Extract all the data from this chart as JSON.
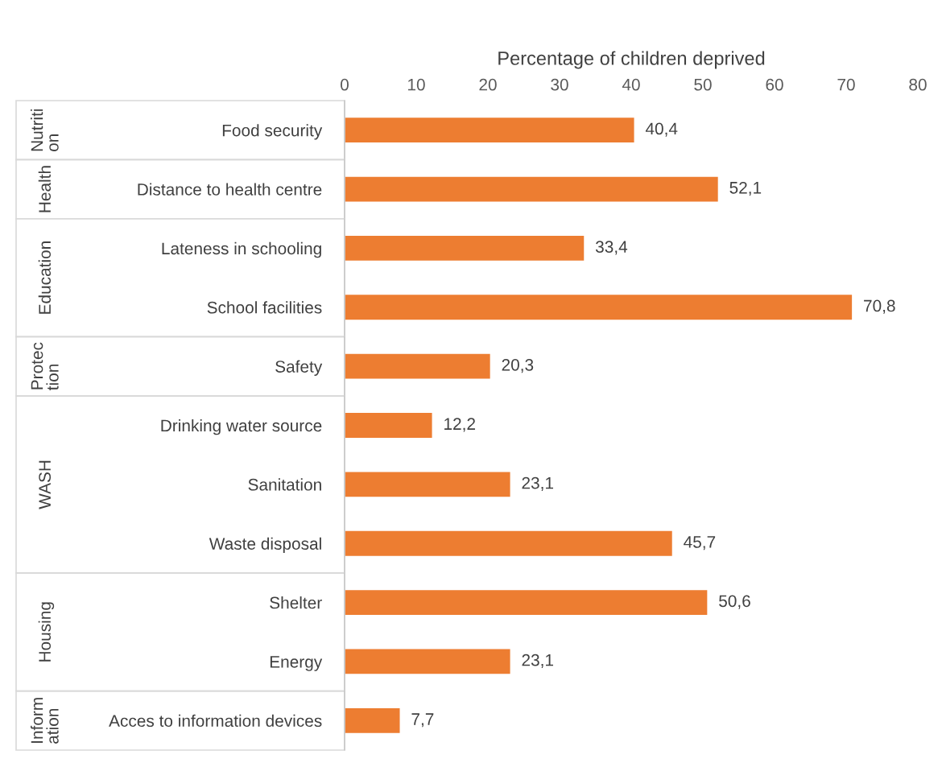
{
  "chart_data": [
    {
      "type": "bar",
      "orientation": "horizontal",
      "ylabel": "Nutriti\non",
      "xlabel": "Percentage of children deprived",
      "categories": [
        "Food security"
      ],
      "values": [
        40.4
      ],
      "value_labels": [
        "40,4"
      ],
      "color": "#ed7d31",
      "xlim": [
        0,
        80
      ],
      "xticks": [
        0,
        10,
        20,
        30,
        40,
        50,
        60,
        70,
        80
      ],
      "grid": false,
      "legend": false
    },
    {
      "type": "bar",
      "orientation": "horizontal",
      "ylabel": "Health",
      "categories": [
        "Distance to health centre"
      ],
      "values": [
        52.1
      ],
      "value_labels": [
        "52,1"
      ],
      "color": "#ed7d31",
      "xlim": [
        0,
        80
      ],
      "tick_labels": "y",
      "grid": false,
      "legend": false
    },
    {
      "type": "bar",
      "orientation": "horizontal",
      "ylabel": "Education",
      "categories": [
        "Lateness in schooling",
        "School facilities"
      ],
      "values": [
        33.4,
        70.8
      ],
      "value_labels": [
        "33,4",
        "70,8"
      ],
      "color": "#ed7d31",
      "xlim": [
        0,
        80
      ],
      "tick_labels": "y",
      "grid": false,
      "legend": false
    },
    {
      "type": "bar",
      "orientation": "horizontal",
      "ylabel": "Protec\ntion",
      "categories": [
        "Safety"
      ],
      "values": [
        20.3
      ],
      "value_labels": [
        "20,3"
      ],
      "color": "#ed7d31",
      "xlim": [
        0,
        80
      ],
      "tick_labels": "y",
      "grid": false,
      "legend": false
    },
    {
      "type": "bar",
      "orientation": "horizontal",
      "ylabel": "WASH",
      "categories": [
        "Drinking water source",
        "Sanitation",
        "Waste disposal"
      ],
      "values": [
        12.2,
        23.1,
        45.7
      ],
      "value_labels": [
        "12,2",
        "23,1",
        "45,7"
      ],
      "color": "#ed7d31",
      "xlim": [
        0,
        80
      ],
      "tick_labels": "y",
      "grid": false,
      "legend": false
    },
    {
      "type": "bar",
      "orientation": "horizontal",
      "ylabel": "Housing",
      "categories": [
        "Shelter",
        "Energy"
      ],
      "values": [
        50.6,
        23.1
      ],
      "value_labels": [
        "50,6",
        "23,1"
      ],
      "color": "#ed7d31",
      "xlim": [
        0,
        80
      ],
      "tick_labels": "y",
      "grid": false,
      "legend": false
    },
    {
      "type": "bar",
      "orientation": "horizontal",
      "ylabel": "Inform\nation",
      "categories": [
        "Acces to information devices"
      ],
      "values": [
        7.7
      ],
      "value_labels": [
        "7,7"
      ],
      "color": "#ed7d31",
      "xlim": [
        0,
        80
      ],
      "tick_labels": "y",
      "grid": false,
      "legend": false
    }
  ]
}
